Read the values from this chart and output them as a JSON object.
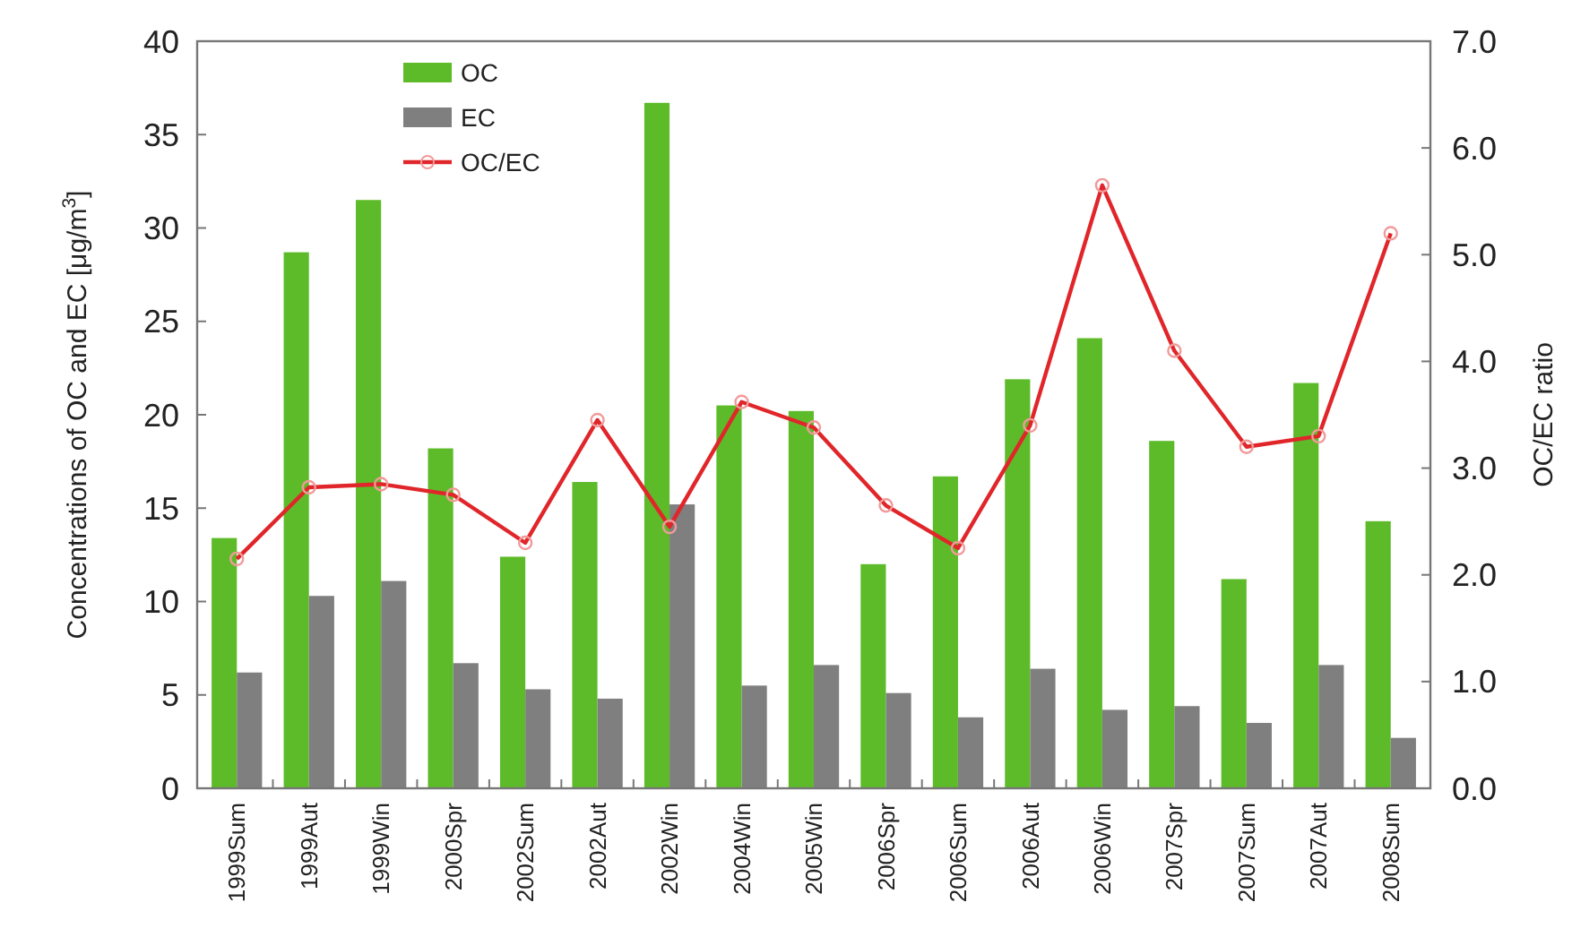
{
  "chart_data": {
    "type": "bar",
    "categories": [
      "1999Sum",
      "1999Aut",
      "1999Win",
      "2000Spr",
      "2002Sum",
      "2002Aut",
      "2002Win",
      "2004Win",
      "2005Win",
      "2006Spr",
      "2006Sum",
      "2006Aut",
      "2006Win",
      "2007Spr",
      "2007Sum",
      "2007Aut",
      "2008Sum"
    ],
    "series": [
      {
        "name": "OC",
        "color": "#5dbb2a",
        "values": [
          13.4,
          28.7,
          31.5,
          18.2,
          12.4,
          16.4,
          36.7,
          20.5,
          20.2,
          12.0,
          16.7,
          21.9,
          24.1,
          18.6,
          11.2,
          21.7,
          14.3
        ]
      },
      {
        "name": "EC",
        "color": "#7f7f7f",
        "values": [
          6.2,
          10.3,
          11.1,
          6.7,
          5.3,
          4.8,
          15.2,
          5.5,
          6.6,
          5.1,
          3.8,
          6.4,
          4.2,
          4.4,
          3.5,
          6.6,
          2.7
        ]
      },
      {
        "name": "OC/EC",
        "type": "line",
        "axis": "y2",
        "color": "#e0262a",
        "marker": "circle",
        "values": [
          2.15,
          2.82,
          2.85,
          2.75,
          2.3,
          3.45,
          2.45,
          3.62,
          3.38,
          2.65,
          2.25,
          3.4,
          5.65,
          4.1,
          3.2,
          3.3,
          5.2
        ]
      }
    ],
    "ylabel": "Concentrations of OC and EC [μg/m$^{3}$]",
    "y2label": "OC/EC ratio",
    "ylim": [
      0,
      40
    ],
    "yticks": [
      0,
      5,
      10,
      15,
      20,
      25,
      30,
      35,
      40
    ],
    "y2lim": [
      0,
      7
    ],
    "y2ticks": [
      {
        "value": 0,
        "label": "0.0"
      },
      {
        "value": 1,
        "label": "1.0"
      },
      {
        "value": 2,
        "label": "2.0"
      },
      {
        "value": 3,
        "label": "3.0"
      },
      {
        "value": 4,
        "label": "4.0"
      },
      {
        "value": 5,
        "label": "5.0"
      },
      {
        "value": 6,
        "label": "6.0"
      },
      {
        "value": 7,
        "label": "7.0"
      }
    ],
    "legend": "top left",
    "grid": false
  }
}
